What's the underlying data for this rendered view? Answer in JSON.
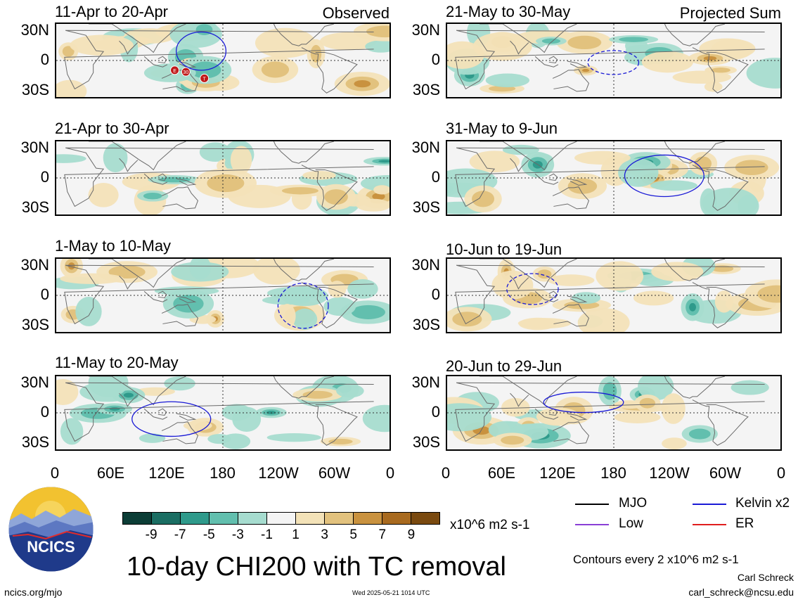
{
  "header": {
    "observed_label": "Observed",
    "projected_label": "Projected Sum"
  },
  "lat_labels": [
    "30N",
    "0",
    "30S"
  ],
  "lon_labels": [
    "0",
    "60E",
    "120E",
    "180",
    "120W",
    "60W",
    "0"
  ],
  "chart_data": [
    {
      "type": "heatmap",
      "title": "11-Apr to 20-Apr",
      "column": "Observed",
      "tc_markers": [
        "E",
        "30",
        "T"
      ]
    },
    {
      "type": "heatmap",
      "title": "21-Apr to 30-Apr",
      "column": "Observed"
    },
    {
      "type": "heatmap",
      "title": "1-May to 10-May",
      "column": "Observed"
    },
    {
      "type": "heatmap",
      "title": "11-May to 20-May",
      "column": "Observed"
    },
    {
      "type": "heatmap",
      "title": "21-May to 30-May",
      "column": "Projected Sum"
    },
    {
      "type": "heatmap",
      "title": "31-May to 9-Jun",
      "column": "Projected Sum"
    },
    {
      "type": "heatmap",
      "title": "10-Jun to 19-Jun",
      "column": "Projected Sum"
    },
    {
      "type": "heatmap",
      "title": "20-Jun to 29-Jun",
      "column": "Projected Sum"
    }
  ],
  "colorbar": {
    "colors": [
      "#0c3d36",
      "#1b6e63",
      "#2f9a8b",
      "#62bfae",
      "#a6dccf",
      "#f4f4f4",
      "#f3e2b8",
      "#e2c27e",
      "#c9923f",
      "#a86a1f",
      "#7a4a10"
    ],
    "labels": [
      "-9",
      "-7",
      "-5",
      "-3",
      "-1",
      "1",
      "3",
      "5",
      "7",
      "9"
    ],
    "units": "x10^6 m2 s-1"
  },
  "legend": {
    "mjo": {
      "label": "MJO",
      "color": "#000000"
    },
    "kelvin": {
      "label": "Kelvin x2",
      "color": "#1a1ad6"
    },
    "low": {
      "label": "Low",
      "color": "#8a3fd6"
    },
    "er": {
      "label": "ER",
      "color": "#e01e1e"
    }
  },
  "title": "10-day CHI200 with TC removal",
  "contour_note": "Contours every 2 x10^6 m2 s-1",
  "logo_text": "NCICS",
  "footer": {
    "site": "ncics.org/mjo",
    "timestamp": "Wed 2025-05-21 1014 UTC",
    "author": "Carl Schreck",
    "email": "carl_schreck@ncsu.edu"
  }
}
